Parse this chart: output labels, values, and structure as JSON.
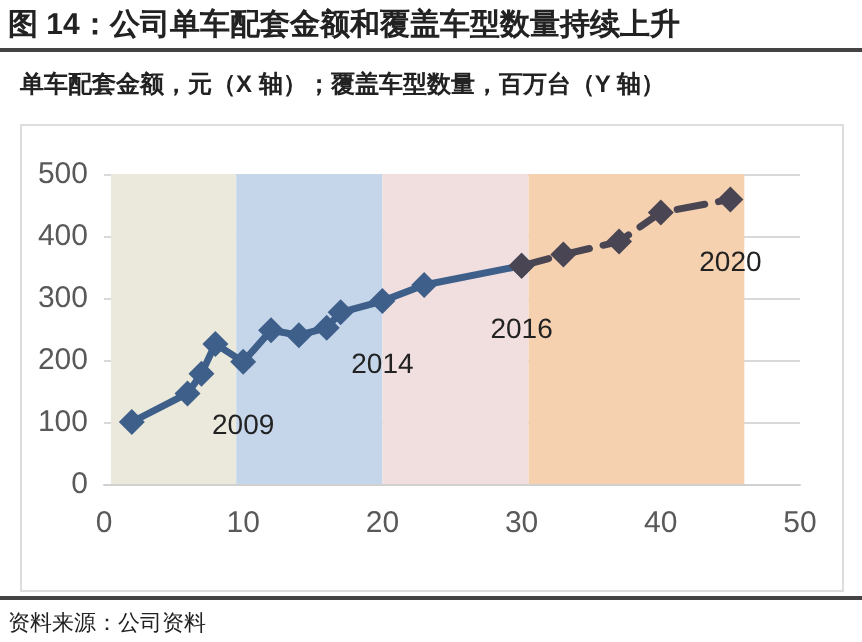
{
  "chart_data": {
    "type": "line",
    "title": "图 14：公司单车配套金额和覆盖车型数量持续上升",
    "subtitle": "单车配套金额，元（X 轴）；覆盖车型数量，百万台（Y 轴）",
    "series": [
      {
        "color": "#3d5f8a",
        "line_style": "solid",
        "x": [
          2,
          6,
          7,
          8,
          10,
          12,
          14,
          16,
          17,
          20,
          23,
          30
        ],
        "values": [
          100,
          146,
          178,
          226,
          197,
          248,
          240,
          252,
          277,
          295,
          321,
          352
        ]
      },
      {
        "color": "#4a4552",
        "line_style": "dashed",
        "x": [
          30,
          33,
          37,
          40,
          45
        ],
        "values": [
          352,
          370,
          391,
          438,
          459
        ]
      }
    ],
    "bands": [
      {
        "axis": "x",
        "from": 0.5,
        "to": 9.5,
        "color": "#ebe8dc"
      },
      {
        "axis": "x",
        "from": 9.5,
        "to": 20,
        "color": "#c6d6ea"
      },
      {
        "axis": "x",
        "from": 20,
        "to": 30.5,
        "color": "#f1dede"
      },
      {
        "axis": "x",
        "from": 30.5,
        "to": 46,
        "color": "#f5d1b0"
      }
    ],
    "annotations": [
      {
        "text": "2009",
        "x": 10,
        "y": 197
      },
      {
        "text": "2014",
        "x": 20,
        "y": 295
      },
      {
        "text": "2016",
        "x": 30,
        "y": 352
      },
      {
        "text": "2020",
        "x": 45,
        "y": 459
      },
      "资料来源：公司资料"
    ],
    "xlim": [
      0,
      50
    ],
    "xticks": [
      0,
      10,
      20,
      30,
      40,
      50
    ],
    "ylim": [
      0,
      500
    ],
    "yticks": [
      0,
      100,
      200,
      300,
      400,
      500
    ],
    "grid": "y",
    "marker": "diamond"
  }
}
